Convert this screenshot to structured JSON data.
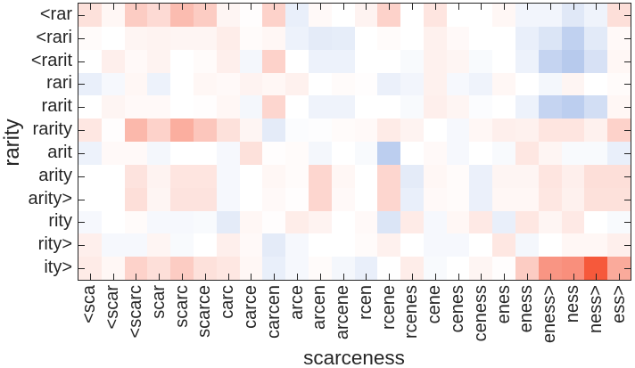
{
  "chart_data": {
    "type": "heatmap",
    "title": "",
    "xlabel": "scarceness",
    "ylabel": "rarity",
    "x_labels": [
      "<sca",
      "<scar",
      "<scarc",
      "scar",
      "scarc",
      "scarce",
      "carc",
      "carce",
      "carcen",
      "arce",
      "arcen",
      "arcene",
      "rcen",
      "rcene",
      "rcenes",
      "cene",
      "cenes",
      "ceness",
      "enes",
      "eness",
      "eness>",
      "ness",
      "ness>",
      "ess>"
    ],
    "y_labels": [
      "<rar",
      "<rari",
      "<rarit",
      "rari",
      "rarit",
      "rarity",
      "arit",
      "arity",
      "arity>",
      "rity",
      "rity>",
      "ity>"
    ],
    "values": [
      [
        0.15,
        0.04,
        0.25,
        0.18,
        0.33,
        0.25,
        0.05,
        0.01,
        0.22,
        -0.1,
        0.03,
        0.0,
        0.06,
        0.22,
        0.0,
        0.13,
        0.0,
        0.0,
        0.04,
        -0.06,
        -0.06,
        -0.14,
        -0.07,
        0.16
      ],
      [
        0.02,
        0.0,
        0.05,
        0.06,
        0.05,
        0.05,
        0.09,
        0.02,
        0.04,
        -0.08,
        -0.12,
        -0.11,
        0.0,
        0.02,
        0.0,
        0.07,
        0.03,
        0.0,
        0.0,
        -0.1,
        -0.16,
        -0.28,
        -0.13,
        0.03
      ],
      [
        0.0,
        0.08,
        0.03,
        0.06,
        0.0,
        0.02,
        0.08,
        -0.05,
        0.22,
        0.0,
        -0.08,
        -0.08,
        0.0,
        0.0,
        -0.03,
        0.07,
        0.05,
        -0.03,
        0.0,
        -0.08,
        -0.26,
        -0.32,
        -0.18,
        0.04
      ],
      [
        -0.1,
        -0.04,
        0.04,
        -0.08,
        0.0,
        0.04,
        0.03,
        0.06,
        0.04,
        0.07,
        0.0,
        0.02,
        0.01,
        -0.09,
        -0.06,
        0.07,
        -0.04,
        -0.07,
        0.04,
        0.0,
        -0.05,
        0.05,
        0.0,
        0.02
      ],
      [
        0.0,
        0.05,
        0.03,
        0.03,
        0.0,
        0.01,
        0.04,
        -0.05,
        0.2,
        0.0,
        -0.07,
        -0.07,
        0.0,
        0.0,
        -0.03,
        0.08,
        0.05,
        -0.02,
        0.0,
        -0.08,
        -0.26,
        -0.3,
        -0.2,
        0.04
      ],
      [
        0.12,
        0.01,
        0.35,
        0.22,
        0.4,
        0.28,
        0.15,
        0.05,
        -0.12,
        -0.02,
        -0.01,
        0.02,
        0.03,
        0.1,
        0.06,
        0.0,
        -0.04,
        0.04,
        0.08,
        0.07,
        0.13,
        0.13,
        0.07,
        0.22
      ],
      [
        -0.08,
        0.03,
        0.03,
        -0.05,
        0.0,
        0.0,
        -0.04,
        0.15,
        0.01,
        0.02,
        -0.05,
        0.0,
        -0.03,
        -0.3,
        0.0,
        0.03,
        -0.04,
        0.0,
        -0.03,
        0.12,
        0.05,
        -0.03,
        -0.03,
        -0.1
      ],
      [
        0.0,
        0.0,
        0.14,
        0.06,
        0.13,
        0.13,
        -0.04,
        0.0,
        0.04,
        0.02,
        0.2,
        0.04,
        0.0,
        0.2,
        -0.12,
        0.04,
        0.02,
        -0.09,
        0.05,
        0.05,
        0.13,
        0.08,
        0.16,
        0.16
      ],
      [
        0.0,
        0.0,
        0.16,
        0.05,
        0.14,
        0.14,
        -0.04,
        0.0,
        0.03,
        0.01,
        0.2,
        0.03,
        0.0,
        0.2,
        -0.1,
        0.03,
        0.02,
        -0.09,
        0.04,
        0.04,
        0.12,
        0.07,
        0.15,
        0.15
      ],
      [
        -0.04,
        0.0,
        0.02,
        -0.04,
        -0.04,
        -0.03,
        -0.12,
        0.04,
        0.01,
        0.09,
        0.06,
        0.0,
        0.03,
        -0.16,
        0.1,
        -0.04,
        0.04,
        0.11,
        -0.1,
        0.12,
        0.05,
        0.11,
        0.0,
        -0.03
      ],
      [
        0.08,
        -0.04,
        -0.04,
        0.05,
        -0.03,
        0.0,
        0.08,
        0.03,
        -0.12,
        -0.04,
        0.0,
        0.0,
        0.02,
        0.07,
        0.0,
        -0.04,
        -0.04,
        0.0,
        0.12,
        -0.05,
        0.0,
        0.04,
        0.04,
        0.08
      ],
      [
        0.1,
        0.04,
        0.22,
        0.16,
        0.25,
        0.15,
        0.12,
        0.04,
        -0.1,
        -0.04,
        0.02,
        -0.05,
        -0.1,
        0.0,
        0.09,
        -0.03,
        0.0,
        0.05,
        0.01,
        0.25,
        0.52,
        0.55,
        0.82,
        0.42
      ]
    ],
    "value_range": [
      -1,
      1
    ],
    "colormap": {
      "type": "diverging",
      "negative_color": "#1e5ac8",
      "zero_color": "#ffffff",
      "positive_color": "#f43410"
    },
    "axis_color": "#262626",
    "tick_direction": "in",
    "grid": false
  }
}
